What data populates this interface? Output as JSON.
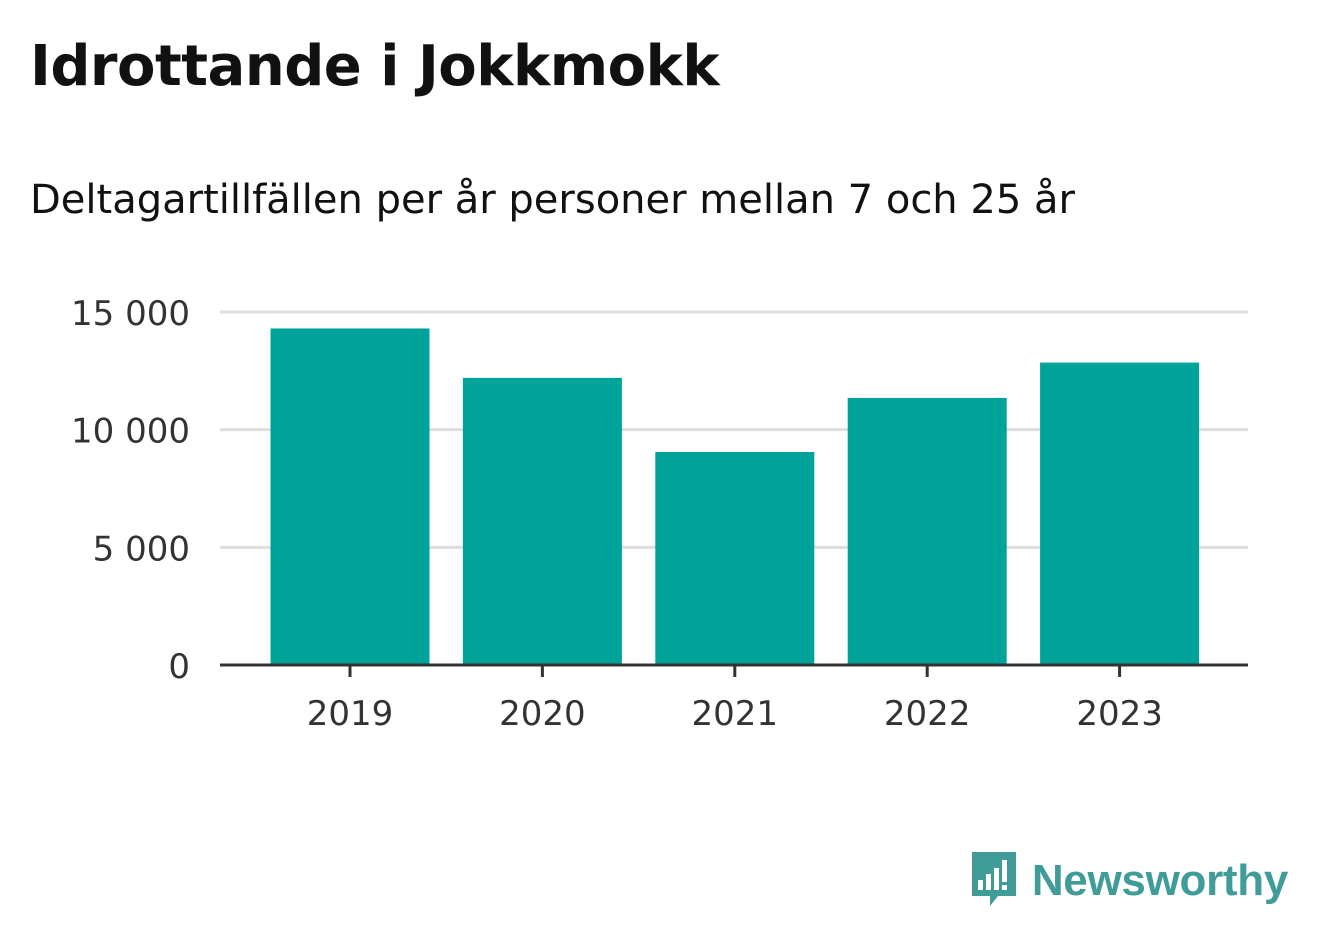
{
  "colors": {
    "bar": "#00a39a",
    "gridline": "#dddddd",
    "axis": "#333333",
    "tick_text": "#333333",
    "brand": "#3f9c99"
  },
  "chart_data": {
    "type": "bar",
    "title": "Idrottande i Jokkmokk",
    "subtitle": "Deltagartillfällen per år personer mellan 7 och 25 år",
    "categories": [
      "2019",
      "2020",
      "2021",
      "2022",
      "2023"
    ],
    "values": [
      14300,
      12200,
      9050,
      11350,
      12850
    ],
    "ylim": [
      0,
      15000
    ],
    "yticks": [
      0,
      5000,
      10000,
      15000
    ],
    "ytick_labels": [
      "0",
      "5 000",
      "10 000",
      "15 000"
    ],
    "grid": true,
    "legend": "none"
  },
  "brand": {
    "name": "Newsworthy",
    "icon": "newsworthy-logo-icon"
  }
}
